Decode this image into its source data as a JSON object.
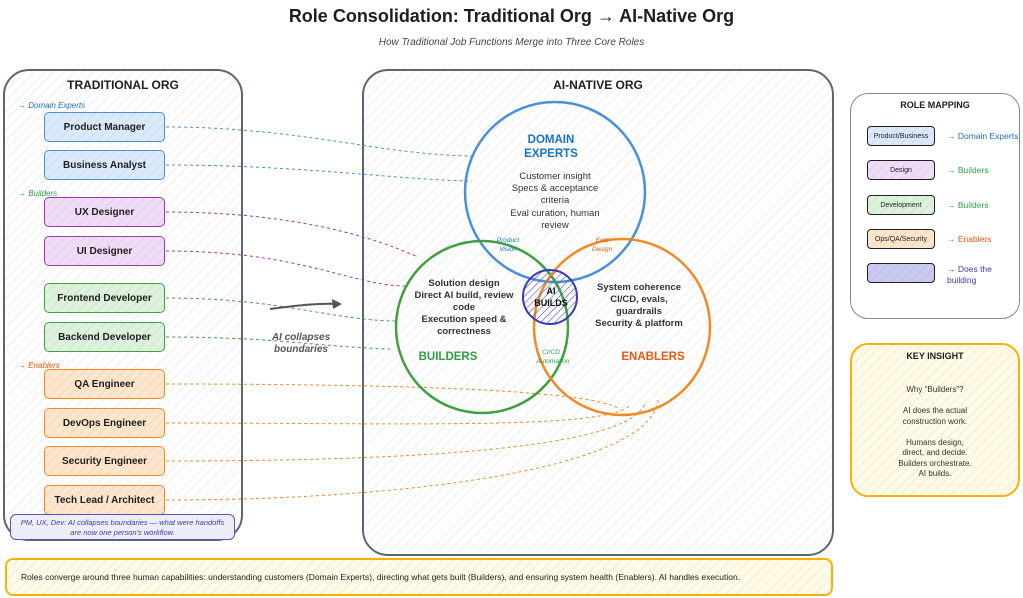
{
  "title": "Role Consolidation: Traditional Org → AI-Native Org",
  "subtitle": "How Traditional Job Functions Merge into Three Core Roles",
  "traditional": {
    "title": "TRADITIONAL ORG",
    "groups": {
      "domain": "→ Domain Experts",
      "builders": "→ Builders",
      "enablers": "→ Enablers"
    },
    "roles": [
      "Product Manager",
      "Business Analyst",
      "UX Designer",
      "UI Designer",
      "Frontend Developer",
      "Backend Developer",
      "QA Engineer",
      "DevOps Engineer",
      "Security Engineer",
      "Tech Lead / Architect"
    ],
    "footnote": "PM, UX, Dev: AI collapses boundaries — what were handoffs are now one person's workflow."
  },
  "collapse_label": "AI collapses boundaries",
  "ai_native": {
    "title": "AI-NATIVE ORG",
    "domain": {
      "title1": "DOMAIN",
      "title2": "EXPERTS",
      "lines": [
        "Customer insight",
        "Specs & acceptance",
        "criteria",
        "Eval curation, human",
        "review"
      ]
    },
    "builders": {
      "title": "BUILDERS",
      "lines": [
        "Solution design",
        "Direct AI build, review",
        "code",
        "Execution speed &",
        "correctness"
      ]
    },
    "enablers": {
      "title": "ENABLERS",
      "lines": [
        "System coherence",
        "CI/CD, evals,",
        "guardrails",
        "Security & platform"
      ]
    },
    "ai": {
      "line1": "AI",
      "line2": "BUILDS"
    },
    "overlaps": {
      "product_vision": [
        "Product",
        "Vision"
      ],
      "eval_design": [
        "Eval",
        "Design"
      ],
      "cicd": [
        "CI/CD",
        "Automation"
      ]
    }
  },
  "role_mapping": {
    "title": "ROLE MAPPING",
    "items": [
      {
        "swatch": "Product/Business",
        "target": "→ Domain Experts",
        "color": "#1971c2"
      },
      {
        "swatch": "Design",
        "target": "→ Builders",
        "color": "#2f9e44"
      },
      {
        "swatch": "Development",
        "target": "→ Builders",
        "color": "#2f9e44"
      },
      {
        "swatch": "Ops/QA/Security",
        "target": "→ Enablers",
        "color": "#e8590c"
      },
      {
        "swatch": "",
        "target": "→ Does the building",
        "color": "#3b3bb5"
      }
    ]
  },
  "key_insight": {
    "title": "KEY INSIGHT",
    "lines": [
      "Why \"Builders\"?",
      "",
      "AI does the actual",
      "construction work.",
      "",
      "Humans design,",
      "direct, and decide.",
      "Builders orchestrate.",
      "AI builds."
    ]
  },
  "banner": "Roles converge around three human capabilities: understanding customers (Domain Experts), directing what gets built (Builders), and ensuring system health (Enablers). AI handles execution.",
  "colors": {
    "domain": "#4a90d9",
    "builders": "#40a040",
    "enablers": "#f08a24",
    "ai": "#3b3bb5",
    "insight": "#fab005"
  }
}
